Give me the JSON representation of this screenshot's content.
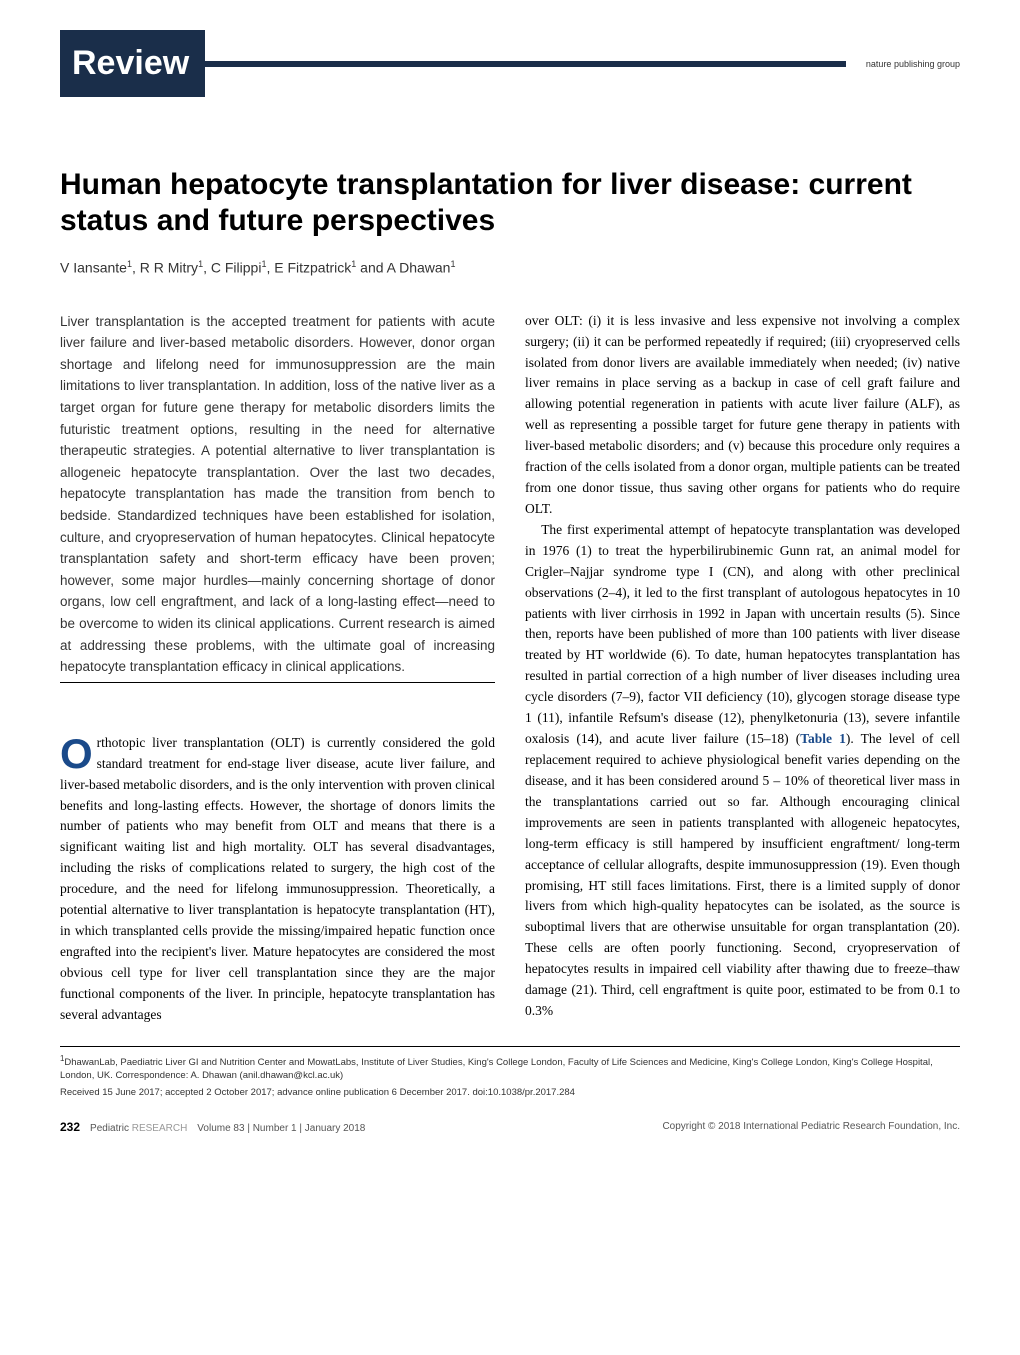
{
  "header": {
    "label": "Review",
    "publisher": "nature publishing group"
  },
  "title": "Human hepatocyte transplantation for liver disease: current status and future perspectives",
  "authors_html": "V Iansante<sup>1</sup>, R R Mitry<sup>1</sup>, C Filippi<sup>1</sup>, E Fitzpatrick<sup>1</sup> and A Dhawan<sup>1</sup>",
  "abstract": "Liver transplantation is the accepted treatment for patients with acute liver failure and liver-based metabolic disorders. However, donor organ shortage and lifelong need for immunosuppression are the main limitations to liver transplantation. In addition, loss of the native liver as a target organ for future gene therapy for metabolic disorders limits the futuristic treatment options, resulting in the need for alternative therapeutic strategies. A potential alternative to liver transplantation is allogeneic hepatocyte transplantation. Over the last two decades, hepatocyte transplantation has made the transition from bench to bedside. Standardized techniques have been established for isolation, culture, and cryopreservation of human hepatocytes. Clinical hepatocyte transplantation safety and short-term efficacy have been proven; however, some major hurdles—mainly concerning shortage of donor organs, low cell engraftment, and lack of a long-lasting effect—need to be overcome to widen its clinical applications. Current research is aimed at addressing these problems, with the ultimate goal of increasing hepatocyte transplantation efficacy in clinical applications.",
  "col1_intro": "rthotopic liver transplantation (OLT) is currently considered the gold standard treatment for end-stage liver disease, acute liver failure, and liver-based metabolic disorders, and is the only intervention with proven clinical benefits and long-lasting effects. However, the shortage of donors limits the number of patients who may benefit from OLT and means that there is a significant waiting list and high mortality. OLT has several disadvantages, including the risks of complications related to surgery, the high cost of the procedure, and the need for lifelong immunosuppression. Theoretically, a potential alternative to liver transplantation is hepatocyte transplantation (HT), in which transplanted cells provide the missing/impaired hepatic function once engrafted into the recipient's liver. Mature hepatocytes are considered the most obvious cell type for liver cell transplantation since they are the major functional components of the liver. In principle, hepatocyte transplantation has several advantages",
  "col2_p1": "over OLT: (i) it is less invasive and less expensive not involving a complex surgery; (ii) it can be performed repeatedly if required; (iii) cryopreserved cells isolated from donor livers are available immediately when needed; (iv) native liver remains in place serving as a backup in case of cell graft failure and allowing potential regeneration in patients with acute liver failure (ALF), as well as representing a possible target for future gene therapy in patients with liver-based metabolic disorders; and (v) because this procedure only requires a fraction of the cells isolated from a donor organ, multiple patients can be treated from one donor tissue, thus saving other organs for patients who do require OLT.",
  "col2_p2a": "The first experimental attempt of hepatocyte transplantation was developed in 1976 (1) to treat the hyperbilirubinemic Gunn rat, an animal model for Crigler–Najjar syndrome type I (CN), and along with other preclinical observations (2–4), it led to the first transplant of autologous hepatocytes in 10 patients with liver cirrhosis in 1992 in Japan with uncertain results (5). Since then, reports have been published of more than 100 patients with liver disease treated by HT worldwide (6). To date, human hepatocytes transplantation has resulted in partial correction of a high number of liver diseases including urea cycle disorders (7–9), factor VII deficiency (10), glycogen storage disease type 1 (11), infantile Refsum's disease (12), phenylketonuria (13), severe infantile oxalosis (14), and acute liver failure (15–18) (",
  "table_link": "Table 1",
  "col2_p2b": "). The level of cell replacement required to achieve physiological benefit varies depending on the disease, and it has been considered around 5 – 10% of theoretical liver mass in the transplantations carried out so far. Although encouraging clinical improvements are seen in patients transplanted with allogeneic hepatocytes, long-term efficacy is still hampered by insufficient engraftment/ long-term acceptance of cellular allografts, despite immunosuppression (19). Even though promising, HT still faces limitations. First, there is a limited supply of donor livers from which high-quality hepatocytes can be isolated, as the source is suboptimal livers that are otherwise unsuitable for organ transplantation (20). These cells are often poorly functioning. Second, cryopreservation of hepatocytes results in impaired cell viability after thawing due to freeze–thaw damage (21). Third, cell engraftment is quite poor, estimated to be from 0.1 to 0.3%",
  "affiliation": "DhawanLab, Paediatric Liver GI and Nutrition Center and MowatLabs, Institute of Liver Studies, King's College London, Faculty of Life Sciences and Medicine, King's College London, King's College Hospital, London, UK. Correspondence: A. Dhawan (anil.dhawan@kcl.ac.uk)",
  "received": "Received 15 June 2017; accepted 2 October 2017; advance online publication 6 December 2017. doi:10.1038/pr.2017.284",
  "footer": {
    "page_num": "232",
    "journal": "Pediatric",
    "journal2": "RESEARCH",
    "issue": "Volume 83 | Number 1 | January 2018",
    "copyright": "Copyright © 2018 International Pediatric Research Foundation, Inc."
  },
  "colors": {
    "brand_dark": "#1a2e4a",
    "link_blue": "#1a4a8a"
  }
}
